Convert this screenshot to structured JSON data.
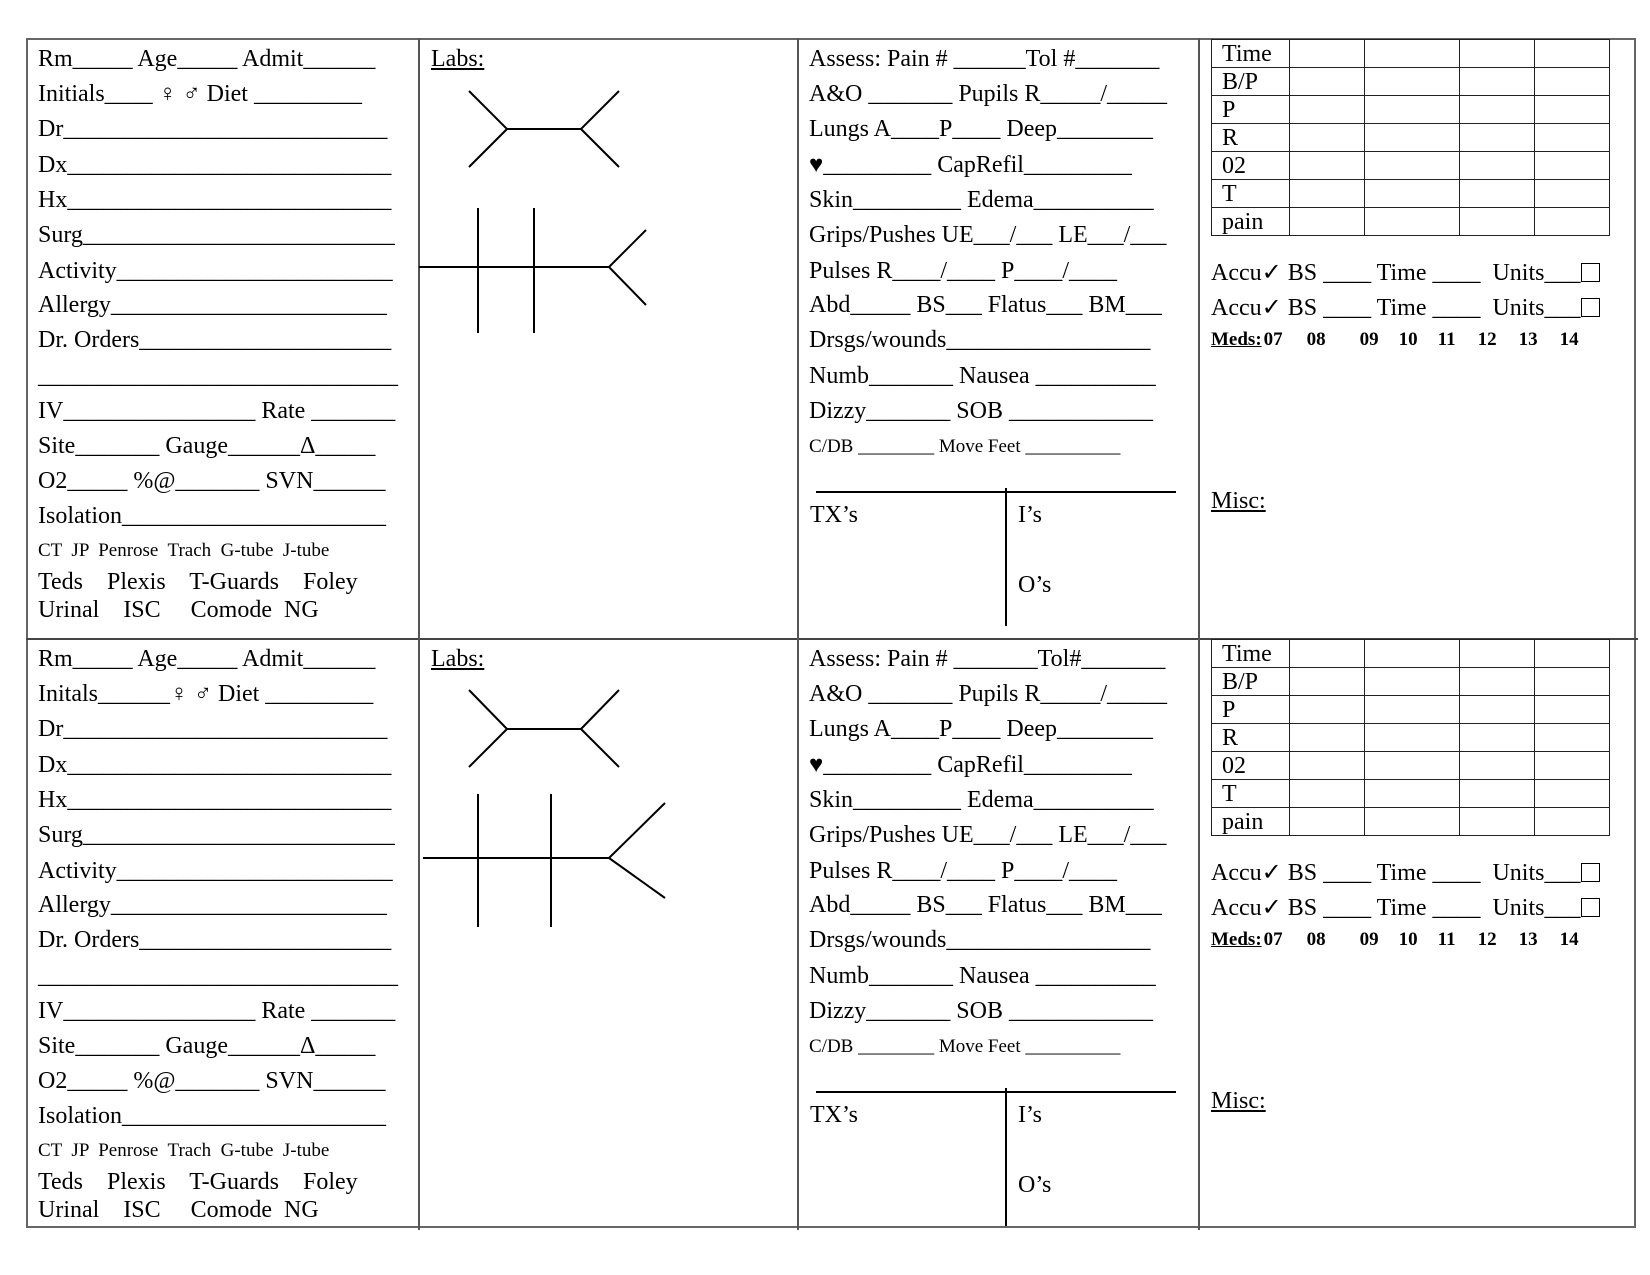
{
  "sections": [
    {
      "left_lines": [
        "Rm_____ Age_____ Admit______",
        "Initials____ ♀ ♂ Diet _________",
        "Dr___________________________",
        "Dx___________________________",
        "Hx___________________________",
        "Surg__________________________",
        "Activity_______________________",
        "Allergy_______________________",
        "Dr. Orders_____________________",
        "______________________________",
        "IV________________ Rate _______",
        "Site_______ Gauge______Δ_____",
        "O2_____ %@_______ SVN______",
        "Isolation______________________"
      ],
      "tubes_line": "CT  JP  Penrose  Trach  G-tube  J-tube",
      "devices_line1": "Teds    Plexis    T-Guards    Foley",
      "devices_line2": "Urinal    ISC     Comode  NG",
      "labs_label": "Labs:",
      "assess_lines": [
        "Assess: Pain # ______Tol #_______",
        "A&O _______ Pupils R_____/_____",
        "Lungs A____P____ Deep________",
        "♥_________ CapRefil_________",
        "Skin_________ Edema__________",
        "Grips/Pushes UE___/___ LE___/___",
        "Pulses R____/____ P____/____",
        "Abd_____ BS___ Flatus___ BM___",
        "Drsgs/wounds_________________",
        "Numb_______ Nausea __________",
        "Dizzy_______ SOB ____________"
      ],
      "cdb_line": "C/DB ________ Move Feet __________",
      "tx_label": "TX’s",
      "is_label": "I’s",
      "os_label": "O’s",
      "vitals_rows": [
        "Time",
        "B/P",
        "P",
        "R",
        "02",
        "T",
        "pain"
      ],
      "accu_lines": [
        "Accu✓ BS ____ Time ____  Units___",
        "Accu✓ BS ____ Time ____  Units___"
      ],
      "meds_label": "Meds:",
      "med_hours": [
        "07",
        "08",
        "09",
        "10",
        "11",
        "12",
        "13",
        "14"
      ],
      "misc_label": "Misc:"
    },
    {
      "left_lines": [
        "Rm_____ Age_____ Admit______",
        "Initals______♀ ♂ Diet _________",
        "Dr___________________________",
        "Dx___________________________",
        "Hx___________________________",
        "Surg__________________________",
        "Activity_______________________",
        "Allergy_______________________",
        "Dr. Orders_____________________",
        "______________________________",
        "IV________________ Rate _______",
        "Site_______ Gauge______Δ_____",
        "O2_____ %@_______ SVN______",
        "Isolation______________________"
      ],
      "tubes_line": "CT  JP  Penrose  Trach  G-tube  J-tube",
      "devices_line1": "Teds    Plexis    T-Guards    Foley",
      "devices_line2": "Urinal    ISC     Comode  NG",
      "labs_label": "Labs:",
      "assess_lines": [
        "Assess: Pain # _______Tol#_______",
        "A&O _______ Pupils R_____/_____",
        "Lungs A____P____ Deep________",
        "♥_________ CapRefil_________",
        "Skin_________ Edema__________",
        "Grips/Pushes UE___/___ LE___/___",
        "Pulses R____/____ P____/____",
        "Abd_____ BS___ Flatus___ BM___",
        "Drsgs/wounds_________________",
        "Numb_______ Nausea __________",
        "Dizzy_______ SOB ____________"
      ],
      "cdb_line": "C/DB ________ Move Feet __________",
      "tx_label": "TX’s",
      "is_label": "I’s",
      "os_label": "O’s",
      "vitals_rows": [
        "Time",
        "B/P",
        "P",
        "R",
        "02",
        "T",
        "pain"
      ],
      "accu_lines": [
        "Accu✓ BS ____ Time ____  Units___",
        "Accu✓ BS ____ Time ____  Units___"
      ],
      "meds_label": "Meds:",
      "med_hours": [
        "07",
        "08",
        "09",
        "10",
        "11",
        "12",
        "13",
        "14"
      ],
      "misc_label": "Misc:"
    }
  ]
}
